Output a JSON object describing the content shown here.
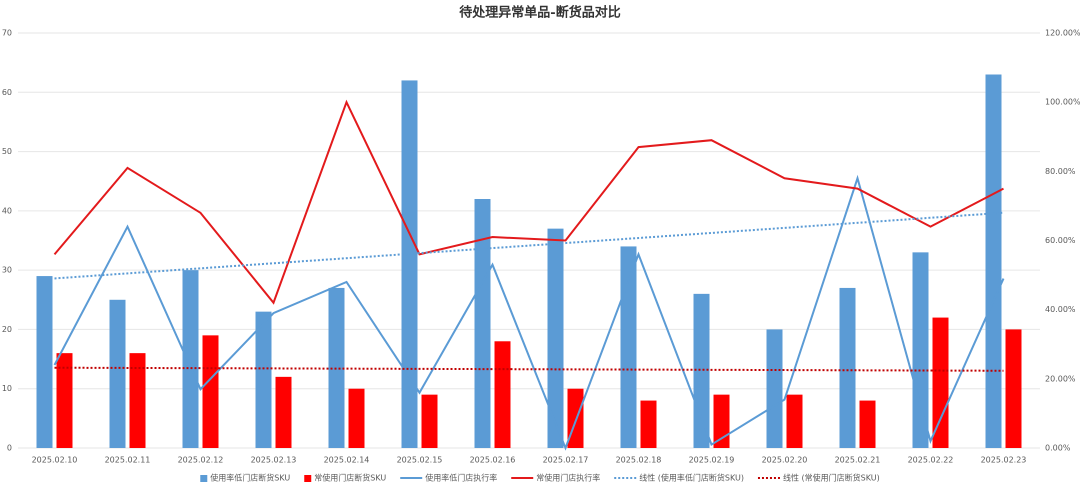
{
  "chart_data": {
    "type": "bar",
    "title": "待处理异常单品-断货品对比",
    "categories": [
      "2025.02.10",
      "2025.02.11",
      "2025.02.12",
      "2025.02.13",
      "2025.02.14",
      "2025.02.15",
      "2025.02.16",
      "2025.02.17",
      "2025.02.18",
      "2025.02.19",
      "2025.02.20",
      "2025.02.21",
      "2025.02.22",
      "2025.02.23"
    ],
    "series": [
      {
        "name": "使用率低门店断货SKU",
        "type": "bar",
        "color": "#5b9bd5",
        "values": [
          29,
          25,
          30,
          23,
          27,
          62,
          42,
          37,
          34,
          26,
          20,
          27,
          33,
          63
        ]
      },
      {
        "name": "常使用门店断货SKU",
        "type": "bar",
        "color": "#ff0000",
        "values": [
          16,
          16,
          19,
          12,
          10,
          9,
          18,
          10,
          8,
          9,
          9,
          8,
          22,
          20
        ]
      },
      {
        "name": "使用率低门店执行率",
        "type": "line",
        "axis": "y2",
        "color": "#5b9bd5",
        "values": [
          24,
          64,
          17,
          39,
          48,
          16,
          53,
          0,
          56,
          1,
          14,
          78,
          2,
          49
        ]
      },
      {
        "name": "常使用门店执行率",
        "type": "line",
        "axis": "y2",
        "color": "#e31a1c",
        "values": [
          56,
          81,
          68,
          42,
          100,
          56,
          61,
          60,
          87,
          89,
          78,
          75,
          64,
          75
        ]
      }
    ],
    "trendlines": [
      {
        "name": "线性 (使用率低门店断货SKU)",
        "color": "#5b9bd5"
      },
      {
        "name": "线性 (常使用门店断货SKU)",
        "color": "#c00000"
      }
    ],
    "ylim": [
      0,
      70
    ],
    "yticks": [
      0,
      10,
      20,
      30,
      40,
      50,
      60,
      70
    ],
    "y2lim": [
      0,
      120
    ],
    "y2ticks": [
      {
        "value": 0,
        "label": "0.00%"
      },
      {
        "value": 20,
        "label": "20.00%"
      },
      {
        "value": 40,
        "label": "40.00%"
      },
      {
        "value": 60,
        "label": "60.00%"
      },
      {
        "value": 80,
        "label": "80.00%"
      },
      {
        "value": 100,
        "label": "100.00%"
      },
      {
        "value": 120,
        "label": "120.00%"
      }
    ],
    "grid": true,
    "legend": "bottom"
  }
}
